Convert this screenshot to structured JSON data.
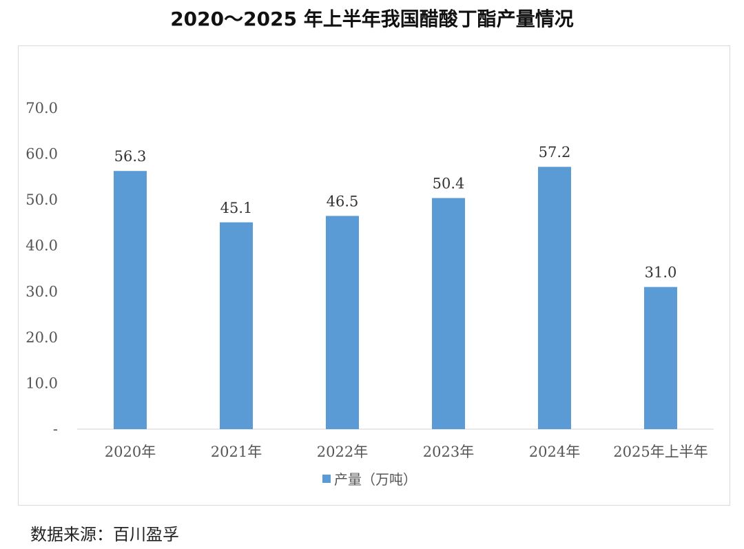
{
  "title": "2020～2025 年上半年我国醋酸丁酯产量情况",
  "source": "数据来源：百川盈孚",
  "chart_data": {
    "type": "bar",
    "categories": [
      "2020年",
      "2021年",
      "2022年",
      "2023年",
      "2024年",
      "2025年上半年"
    ],
    "series": [
      {
        "name": "产量（万吨）",
        "values": [
          56.3,
          45.1,
          46.5,
          50.4,
          57.2,
          31.0
        ],
        "color": "#5b9bd5"
      }
    ],
    "data_labels": [
      "56.3",
      "45.1",
      "46.5",
      "50.4",
      "57.2",
      "31.0"
    ],
    "ylim": [
      0,
      70
    ],
    "yticks": [
      0,
      10,
      20,
      30,
      40,
      50,
      60,
      70
    ],
    "ytick_labels": [
      "-",
      "10.0",
      "20.0",
      "30.0",
      "40.0",
      "50.0",
      "60.0",
      "70.0"
    ],
    "legend_position": "bottom",
    "grid": false
  }
}
